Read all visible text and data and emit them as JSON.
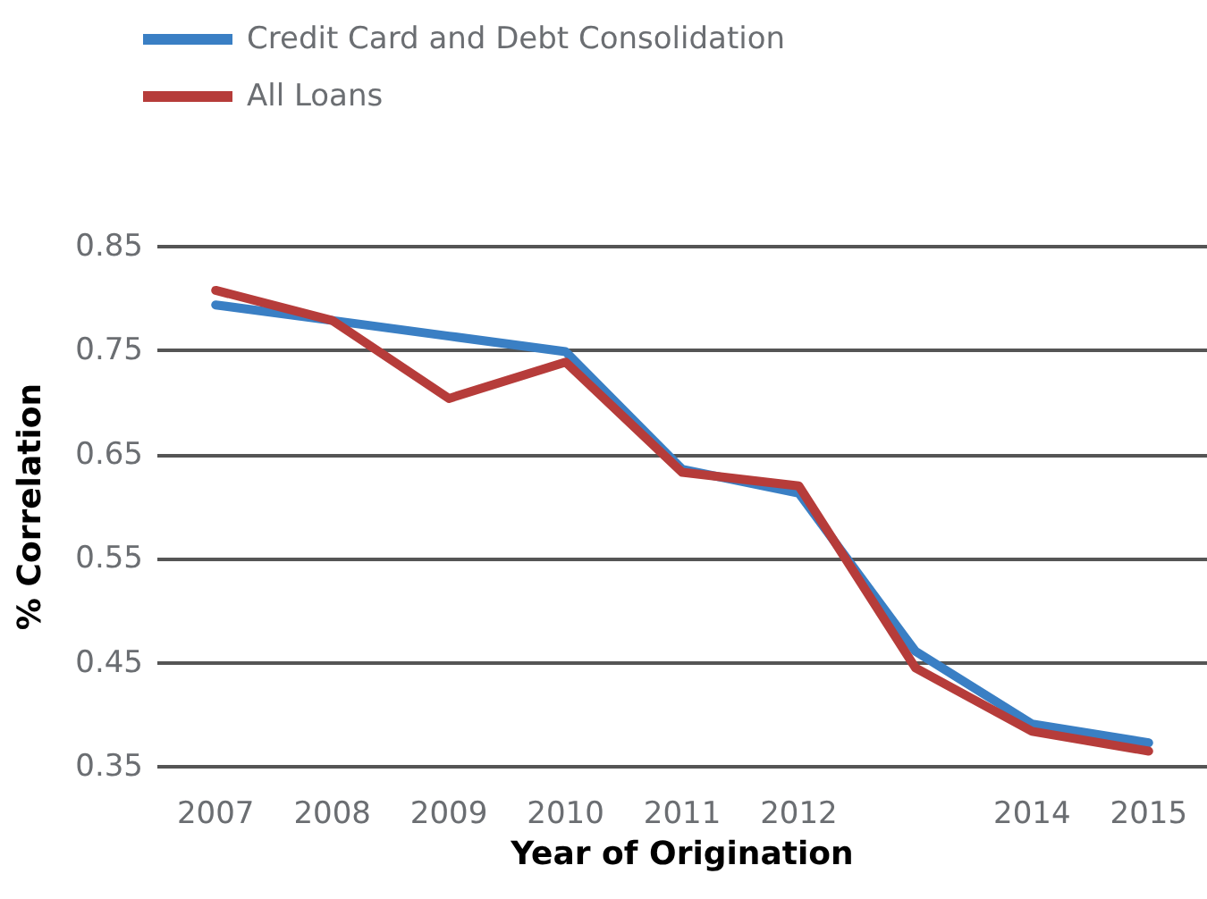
{
  "chart_data": {
    "type": "line",
    "xlabel": "Year of Origination",
    "ylabel": "% Correlation",
    "categories": [
      "2007",
      "2008",
      "2009",
      "2010",
      "2011",
      "2012",
      null,
      "2014",
      "2015"
    ],
    "ylim": [
      0.35,
      0.85
    ],
    "yticks": [
      0.35,
      0.45,
      0.55,
      0.65,
      0.75,
      0.85
    ],
    "series": [
      {
        "name": "Credit Card and Debt Consolidation",
        "color": "#3a7fc4",
        "values": [
          0.794,
          0.779,
          0.764,
          0.749,
          0.636,
          0.613,
          0.461,
          0.391,
          0.373
        ]
      },
      {
        "name": "All Loans",
        "color": "#b63c3a",
        "values": [
          0.808,
          0.779,
          0.704,
          0.739,
          0.633,
          0.62,
          0.445,
          0.384,
          0.365
        ]
      }
    ],
    "grid": "y",
    "legend": "top left",
    "marker": "none",
    "line_style": "solid"
  }
}
